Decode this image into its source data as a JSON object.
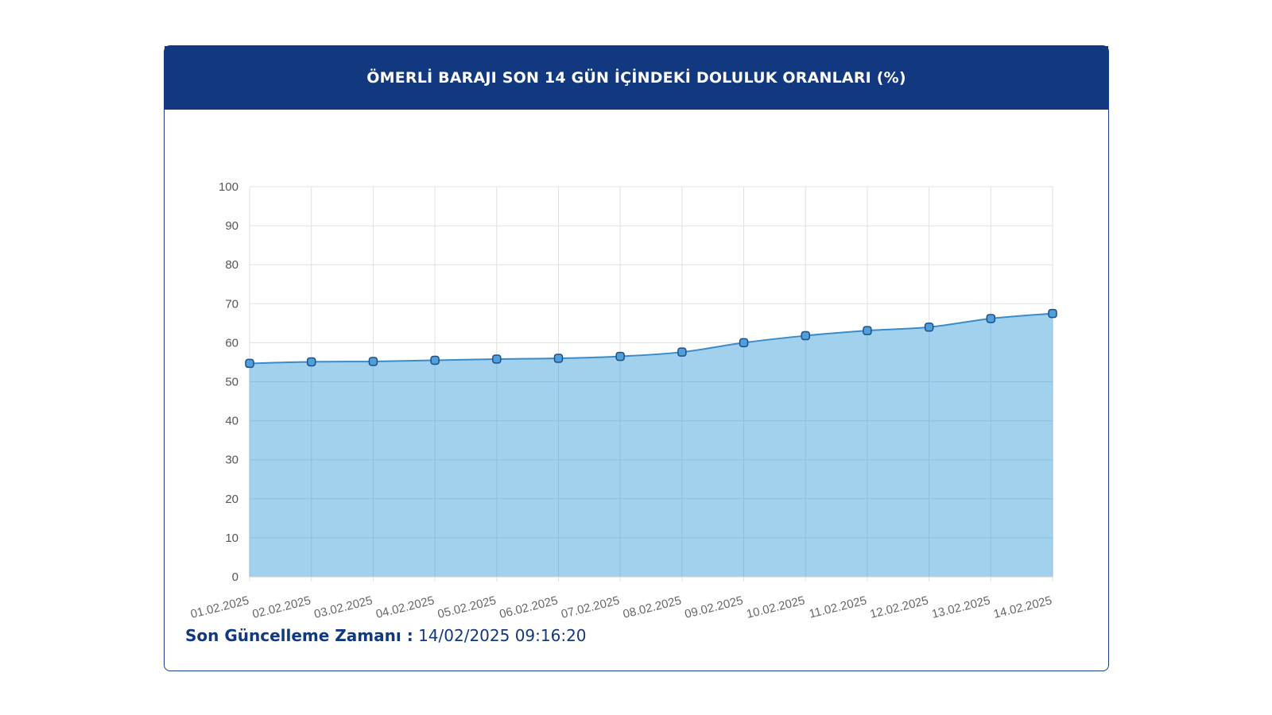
{
  "header": {
    "title": "ÖMERLİ BARAJI SON 14 GÜN İÇİNDEKİ DOLULUK ORANLARI (%)"
  },
  "footer": {
    "label": "Son Güncelleme Zamanı :",
    "value": "14/02/2025 09:16:20"
  },
  "colors": {
    "header_bg": "#12387f",
    "area_fill": "#9dcfed",
    "line": "#3a8cc8",
    "marker_fill": "#4f9fd9",
    "marker_stroke": "#1e4f8a",
    "grid": "#e0e0e0"
  },
  "chart_data": {
    "type": "area",
    "title": "",
    "xlabel": "",
    "ylabel": "",
    "ylim": [
      0,
      100
    ],
    "yticks": [
      0,
      10,
      20,
      30,
      40,
      50,
      60,
      70,
      80,
      90,
      100
    ],
    "categories": [
      "01.02.2025",
      "02.02.2025",
      "03.02.2025",
      "04.02.2025",
      "05.02.2025",
      "06.02.2025",
      "07.02.2025",
      "08.02.2025",
      "09.02.2025",
      "10.02.2025",
      "11.02.2025",
      "12.02.2025",
      "13.02.2025",
      "14.02.2025"
    ],
    "series": [
      {
        "values": [
          54.7,
          55.1,
          55.2,
          55.5,
          55.8,
          56.0,
          56.5,
          57.6,
          60.0,
          61.8,
          63.1,
          64.0,
          66.2,
          67.5
        ]
      }
    ],
    "grid": true,
    "legend": "none"
  }
}
